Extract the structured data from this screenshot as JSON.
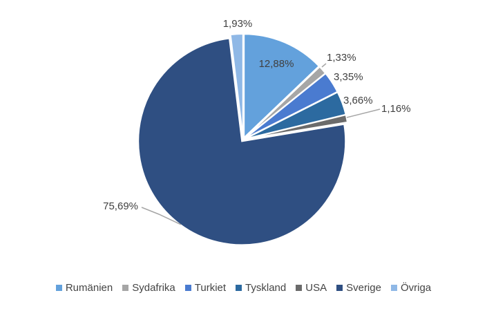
{
  "chart_data": {
    "type": "pie",
    "title": "",
    "slices": [
      {
        "label": "Rumänien",
        "value": 12.88,
        "value_label": "12,88%",
        "color": "#63a1dc"
      },
      {
        "label": "Sydafrika",
        "value": 1.33,
        "value_label": "1,33%",
        "color": "#a6a6a6"
      },
      {
        "label": "Turkiet",
        "value": 3.35,
        "value_label": "3,35%",
        "color": "#4a7bd0"
      },
      {
        "label": "Tyskland",
        "value": 3.66,
        "value_label": "3,66%",
        "color": "#2c6aa0"
      },
      {
        "label": "USA",
        "value": 1.16,
        "value_label": "1,16%",
        "color": "#6b6b6b"
      },
      {
        "label": "Sverige",
        "value": 75.69,
        "value_label": "75,69%",
        "color": "#2f4f82"
      },
      {
        "label": "Övriga",
        "value": 1.93,
        "value_label": "1,93%",
        "color": "#8fb8e6"
      }
    ],
    "legend_position": "bottom"
  }
}
